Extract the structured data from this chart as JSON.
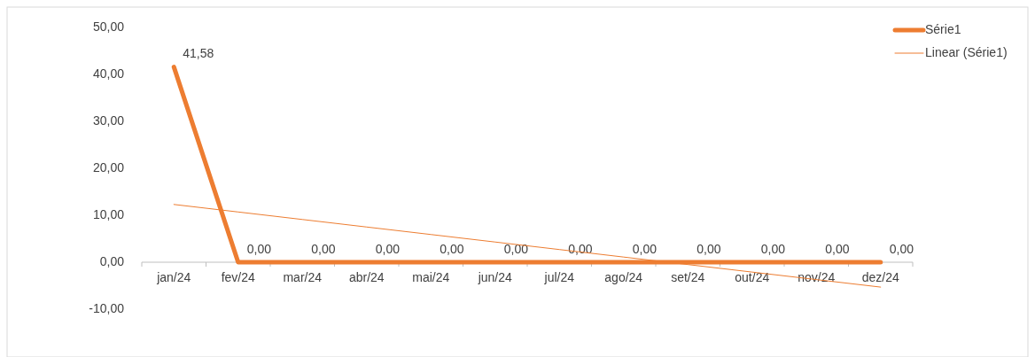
{
  "chart_data": {
    "type": "line",
    "categories": [
      "jan/24",
      "fev/24",
      "mar/24",
      "abr/24",
      "mai/24",
      "jun/24",
      "jul/24",
      "ago/24",
      "set/24",
      "out/24",
      "nov/24",
      "dez/24"
    ],
    "series": [
      {
        "name": "Série1",
        "color": "#ed7d31",
        "values": [
          41.58,
          0,
          0,
          0,
          0,
          0,
          0,
          0,
          0,
          0,
          0,
          0
        ],
        "value_labels": [
          "41,58",
          "0,00",
          "0,00",
          "0,00",
          "0,00",
          "0,00",
          "0,00",
          "0,00",
          "0,00",
          "0,00",
          "0,00",
          "0,00"
        ]
      },
      {
        "name": "Linear (Série1)",
        "type": "line",
        "color": "#ed7d31",
        "values": [
          12.3,
          10.7,
          9.1,
          7.5,
          5.9,
          4.3,
          2.7,
          1.1,
          -0.5,
          -2.1,
          -3.7,
          -5.3
        ]
      }
    ],
    "ylim": [
      -10,
      50
    ],
    "yticks": [
      {
        "value": -10,
        "label": "-10,00"
      },
      {
        "value": 0,
        "label": "0,00"
      },
      {
        "value": 10,
        "label": "10,00"
      },
      {
        "value": 20,
        "label": "20,00"
      },
      {
        "value": 30,
        "label": "30,00"
      },
      {
        "value": 40,
        "label": "40,00"
      },
      {
        "value": 50,
        "label": "50,00"
      }
    ],
    "grid": false,
    "legend": "top right",
    "marker": "none",
    "line_style": "solid"
  }
}
